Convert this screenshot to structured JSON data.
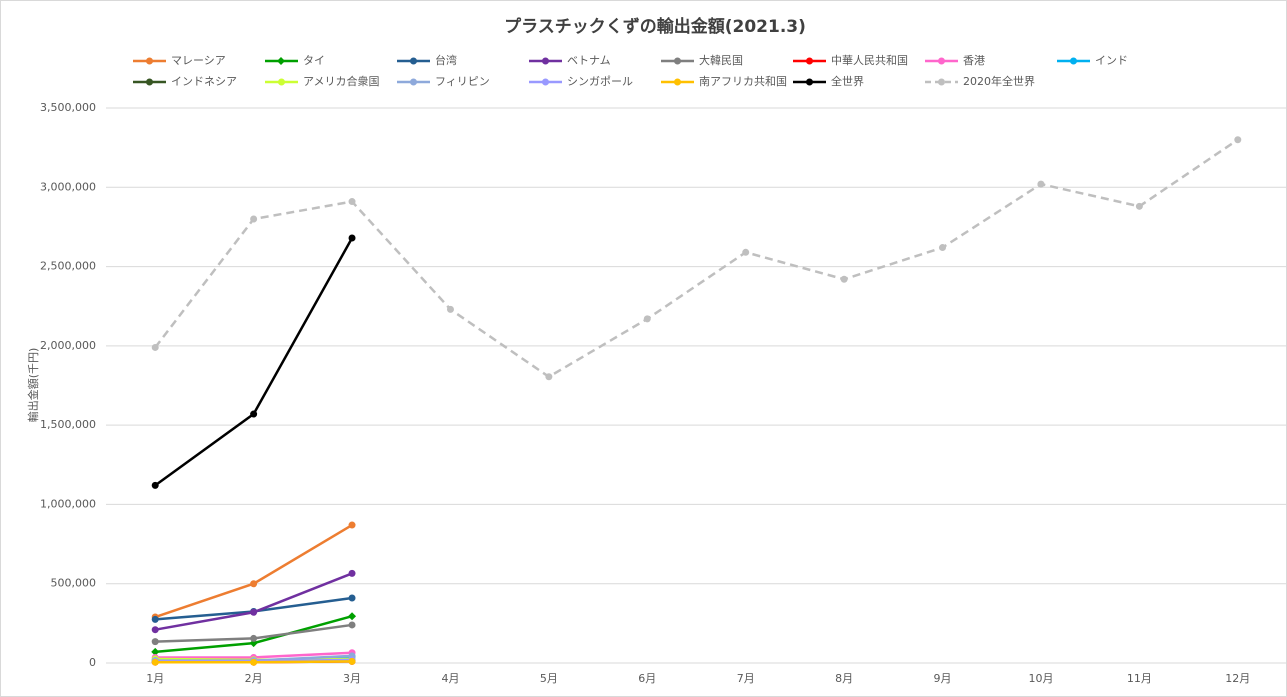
{
  "chart_data": {
    "type": "line",
    "title": "プラスチックくずの輸出金額(2021.3)",
    "y_label": "輸出金額(千円)",
    "categories": [
      "1月",
      "2月",
      "3月",
      "4月",
      "5月",
      "6月",
      "7月",
      "8月",
      "9月",
      "10月",
      "11月",
      "12月"
    ],
    "ylim": [
      0,
      3500000
    ],
    "yticks": [
      0,
      {
        "value": 500000,
        "label": "500,000"
      },
      {
        "value": 1000000,
        "label": "1,000,000"
      },
      {
        "value": 1500000,
        "label": "1,500,000"
      },
      {
        "value": 2000000,
        "label": "2,000,000"
      },
      {
        "value": 2500000,
        "label": "2,500,000"
      },
      {
        "value": 3000000,
        "label": "3,000,000"
      },
      {
        "value": 3500000,
        "label": "3,500,000"
      }
    ],
    "grid": true,
    "series": [
      {
        "name": "マレーシア",
        "color": "#ED7D31",
        "values": [
          290000,
          500000,
          870000,
          null,
          null,
          null,
          null,
          null,
          null,
          null,
          null,
          null
        ]
      },
      {
        "name": "タイ",
        "color": "#00A000",
        "marker": "diamond",
        "values": [
          70000,
          125000,
          295000,
          null,
          null,
          null,
          null,
          null,
          null,
          null,
          null,
          null
        ]
      },
      {
        "name": "台湾",
        "color": "#255E91",
        "values": [
          275000,
          325000,
          410000,
          null,
          null,
          null,
          null,
          null,
          null,
          null,
          null,
          null
        ]
      },
      {
        "name": "ベトナム",
        "color": "#7030A0",
        "values": [
          210000,
          320000,
          565000,
          null,
          null,
          null,
          null,
          null,
          null,
          null,
          null,
          null
        ]
      },
      {
        "name": "大韓民国",
        "color": "#7F7F7F",
        "values": [
          135000,
          155000,
          240000,
          null,
          null,
          null,
          null,
          null,
          null,
          null,
          null,
          null
        ]
      },
      {
        "name": "中華人民共和国",
        "color": "#FF0000",
        "values": [
          5000,
          5000,
          10000,
          null,
          null,
          null,
          null,
          null,
          null,
          null,
          null,
          null
        ]
      },
      {
        "name": "香港",
        "color": "#FF66CC",
        "values": [
          35000,
          35000,
          65000,
          null,
          null,
          null,
          null,
          null,
          null,
          null,
          null,
          null
        ]
      },
      {
        "name": "インド",
        "color": "#00B0F0",
        "values": [
          20000,
          15000,
          40000,
          null,
          null,
          null,
          null,
          null,
          null,
          null,
          null,
          null
        ]
      },
      {
        "name": "インドネシア",
        "color": "#375623",
        "values": [
          10000,
          10000,
          15000,
          null,
          null,
          null,
          null,
          null,
          null,
          null,
          null,
          null
        ]
      },
      {
        "name": "アメリカ合衆国",
        "color": "#CCFF33",
        "values": [
          25000,
          20000,
          25000,
          null,
          null,
          null,
          null,
          null,
          null,
          null,
          null,
          null
        ]
      },
      {
        "name": "フィリピン",
        "color": "#8EA9DB",
        "values": [
          15000,
          15000,
          45000,
          null,
          null,
          null,
          null,
          null,
          null,
          null,
          null,
          null
        ]
      },
      {
        "name": "シンガポール",
        "color": "#9999FF",
        "values": [
          10000,
          10000,
          20000,
          null,
          null,
          null,
          null,
          null,
          null,
          null,
          null,
          null
        ]
      },
      {
        "name": "南アフリカ共和国",
        "color": "#FFC000",
        "values": [
          5000,
          5000,
          10000,
          null,
          null,
          null,
          null,
          null,
          null,
          null,
          null,
          null
        ]
      },
      {
        "name": "全世界",
        "color": "#000000",
        "values": [
          1120000,
          1570000,
          2680000,
          null,
          null,
          null,
          null,
          null,
          null,
          null,
          null,
          null
        ]
      },
      {
        "name": "2020年全世界",
        "color": "#BFBFBF",
        "dash": true,
        "values": [
          1990000,
          2800000,
          2910000,
          2230000,
          1805000,
          2170000,
          2590000,
          2420000,
          2620000,
          3020000,
          2880000,
          3300000
        ]
      }
    ]
  }
}
